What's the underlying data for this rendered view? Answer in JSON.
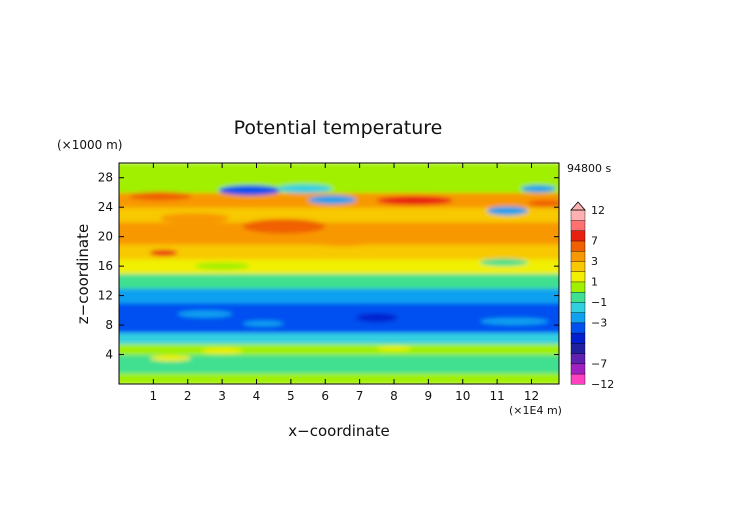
{
  "chart_data": {
    "type": "heatmap",
    "title": "Potential temperature",
    "xlabel": "x−coordinate",
    "ylabel": "z−coordinate",
    "x_unit": "(×1E4 m)",
    "y_unit": "(×1000 m)",
    "time_label": "94800 s",
    "xlim": [
      0,
      12.8
    ],
    "ylim": [
      0,
      30
    ],
    "x_ticks": [
      1,
      2,
      3,
      4,
      5,
      6,
      7,
      8,
      9,
      10,
      11,
      12
    ],
    "y_ticks": [
      4,
      8,
      12,
      16,
      20,
      24,
      28
    ],
    "colorbar": {
      "levels": [
        -12,
        -9,
        -7,
        -6,
        -5,
        -4,
        -3,
        -2,
        -1,
        0,
        1,
        2,
        3,
        5,
        7,
        9,
        12
      ],
      "tick_labels": [
        "12",
        "7",
        "3",
        "1",
        "−1",
        "−3",
        "−7",
        "−12"
      ],
      "colors": [
        "#ff40c0",
        "#a020c0",
        "#6020b0",
        "#2020a0",
        "#0020d0",
        "#0050f0",
        "#10a0f0",
        "#30d0e0",
        "#40e090",
        "#a0f000",
        "#f0f000",
        "#f8c800",
        "#f89800",
        "#f06000",
        "#e82010",
        "#ff7070",
        "#ffb0b0"
      ],
      "over_arrow": true
    },
    "bands": [
      {
        "z": [
          0,
          1.5
        ],
        "value": 0.3
      },
      {
        "z": [
          1.5,
          4
        ],
        "value": -0.3
      },
      {
        "z": [
          4,
          5.5
        ],
        "value": 0.3
      },
      {
        "z": [
          5.5,
          7
        ],
        "value": -1.2
      },
      {
        "z": [
          7,
          11
        ],
        "value": -3.2
      },
      {
        "z": [
          11,
          13
        ],
        "value": -2.4
      },
      {
        "z": [
          13,
          15
        ],
        "value": -0.6
      },
      {
        "z": [
          15,
          17
        ],
        "value": 1.6
      },
      {
        "z": [
          17,
          19
        ],
        "value": 2.6
      },
      {
        "z": [
          19,
          22
        ],
        "value": 3.6
      },
      {
        "z": [
          22,
          24
        ],
        "value": 2.8
      },
      {
        "z": [
          24,
          26
        ],
        "value": 3.8
      },
      {
        "z": [
          26,
          28
        ],
        "value": 0.5
      },
      {
        "z": [
          28,
          30
        ],
        "value": 0.2
      }
    ],
    "blobs": [
      {
        "x": 3.8,
        "z": 26.3,
        "rx": 0.9,
        "rz": 0.7,
        "value": -3.2
      },
      {
        "x": 6.2,
        "z": 25.0,
        "rx": 0.7,
        "rz": 0.6,
        "value": -2.5
      },
      {
        "x": 11.3,
        "z": 23.5,
        "rx": 0.6,
        "rz": 0.6,
        "value": -3.0
      },
      {
        "x": 12.2,
        "z": 26.5,
        "rx": 0.5,
        "rz": 0.5,
        "value": -2.5
      },
      {
        "x": 5.4,
        "z": 26.5,
        "rx": 0.8,
        "rz": 0.6,
        "value": -1.5
      },
      {
        "x": 8.6,
        "z": 24.9,
        "rx": 1.1,
        "rz": 0.6,
        "value": 7.5
      },
      {
        "x": 4.8,
        "z": 21.4,
        "rx": 1.2,
        "rz": 1.0,
        "value": 5.5
      },
      {
        "x": 1.2,
        "z": 25.5,
        "rx": 0.9,
        "rz": 0.6,
        "value": 5.0
      },
      {
        "x": 12.4,
        "z": 24.5,
        "rx": 0.5,
        "rz": 0.5,
        "value": 6.0
      },
      {
        "x": 1.3,
        "z": 17.8,
        "rx": 0.4,
        "rz": 0.4,
        "value": 7.5
      },
      {
        "x": 6.5,
        "z": 19.5,
        "rx": 1.0,
        "rz": 0.8,
        "value": 4.0
      },
      {
        "x": 2.2,
        "z": 22.5,
        "rx": 1.0,
        "rz": 0.7,
        "value": 4.2
      },
      {
        "x": 10.5,
        "z": 21.2,
        "rx": 0.9,
        "rz": 0.6,
        "value": 3.8
      },
      {
        "x": 11.2,
        "z": 16.5,
        "rx": 0.7,
        "rz": 0.5,
        "value": -0.3
      },
      {
        "x": 3.0,
        "z": 16.0,
        "rx": 0.8,
        "rz": 0.5,
        "value": 0.2
      },
      {
        "x": 7.5,
        "z": 9.0,
        "rx": 0.6,
        "rz": 0.6,
        "value": -4.2
      },
      {
        "x": 2.5,
        "z": 9.5,
        "rx": 0.8,
        "rz": 0.5,
        "value": -2.2
      },
      {
        "x": 4.2,
        "z": 8.2,
        "rx": 0.6,
        "rz": 0.4,
        "value": -2.4
      },
      {
        "x": 11.5,
        "z": 8.5,
        "rx": 1.0,
        "rz": 0.5,
        "value": -2.3
      },
      {
        "x": 3.0,
        "z": 4.5,
        "rx": 0.6,
        "rz": 0.4,
        "value": 1.5
      },
      {
        "x": 5.2,
        "z": 2.5,
        "rx": 0.9,
        "rz": 0.6,
        "value": -0.5
      },
      {
        "x": 8.0,
        "z": 4.8,
        "rx": 0.5,
        "rz": 0.3,
        "value": 1.5
      },
      {
        "x": 1.5,
        "z": 3.5,
        "rx": 0.6,
        "rz": 0.4,
        "value": 1.2
      }
    ]
  }
}
